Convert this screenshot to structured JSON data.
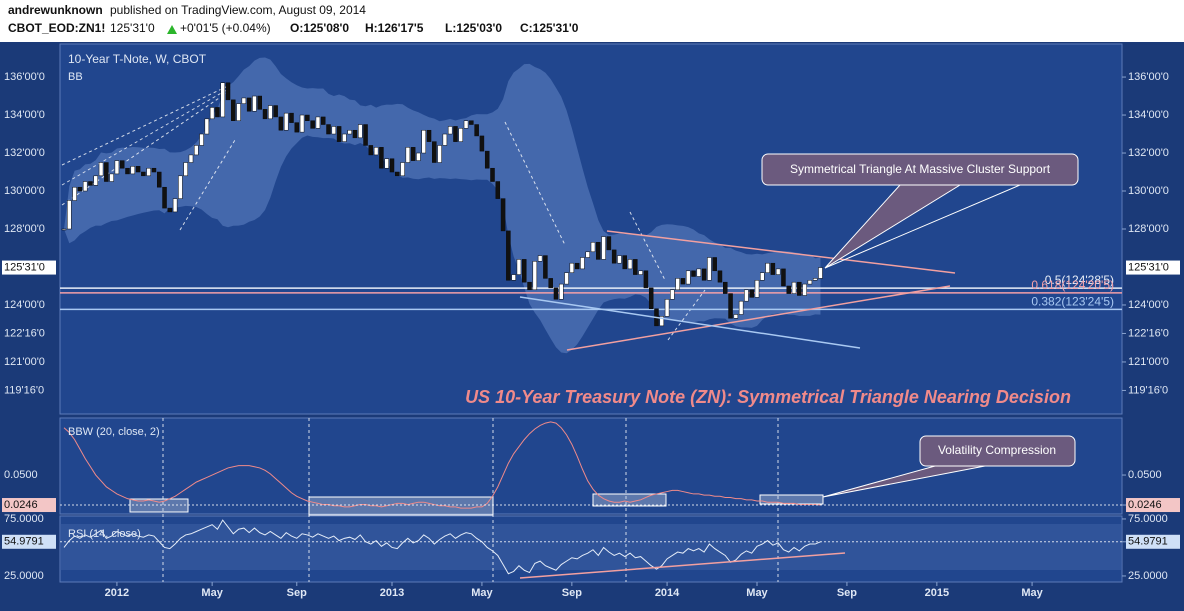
{
  "header": {
    "author": "andrewunknown",
    "published": "published on TradingView.com, August 09, 2014",
    "symbol": "CBOT_EOD:ZN1!",
    "last": "125'31'0",
    "change": "+0'01'5 (+0.04%)",
    "open": "O:125'08'0",
    "high": "H:126'17'5",
    "low": "L:125'03'0",
    "close": "C:125'31'0"
  },
  "chart_data": [
    {
      "type": "candlestick",
      "title": "10-Year T-Note, W, CBOT",
      "indicator": "BB",
      "annotation": "US 10-Year Treasury Note (ZN): Symmetrical Triangle Nearing Decision",
      "callout": "Symmetrical Triangle At Massive Cluster Support",
      "values": [
        128.0,
        129.5,
        130.2,
        130.0,
        130.5,
        130.3,
        130.8,
        131.5,
        130.5,
        130.9,
        131.6,
        131.2,
        130.9,
        131.3,
        131.0,
        130.8,
        131.2,
        131.0,
        130.2,
        129.1,
        128.9,
        129.6,
        130.8,
        131.5,
        131.9,
        132.4,
        133.0,
        133.8,
        134.4,
        133.9,
        135.7,
        134.8,
        133.7,
        134.6,
        134.9,
        134.2,
        135.0,
        134.3,
        133.8,
        134.5,
        133.9,
        133.2,
        134.1,
        133.6,
        133.1,
        134.0,
        133.7,
        133.3,
        133.9,
        133.5,
        133.0,
        133.4,
        132.6,
        133.0,
        133.2,
        132.8,
        133.5,
        132.4,
        131.9,
        132.3,
        131.2,
        131.7,
        131.0,
        130.8,
        131.5,
        132.3,
        131.6,
        132.0,
        133.2,
        132.6,
        131.5,
        132.4,
        133.0,
        133.4,
        132.6,
        133.3,
        133.7,
        133.5,
        132.9,
        132.1,
        131.2,
        130.5,
        129.6,
        127.9,
        125.3,
        125.6,
        126.4,
        125.2,
        124.8,
        126.3,
        126.6,
        125.4,
        124.9,
        124.3,
        125.1,
        125.7,
        126.2,
        125.9,
        126.5,
        126.8,
        127.3,
        126.4,
        127.6,
        126.9,
        126.2,
        126.6,
        125.9,
        126.4,
        125.6,
        125.8,
        124.9,
        123.8,
        122.9,
        123.4,
        124.3,
        124.8,
        125.4,
        125.1,
        125.8,
        125.5,
        125.9,
        125.3,
        126.5,
        125.8,
        125.2,
        124.6,
        123.3,
        123.5,
        124.2,
        124.8,
        124.4,
        125.3,
        125.7,
        126.2,
        125.6,
        125.9,
        125.0,
        124.6,
        125.2,
        124.5,
        125.1,
        125.3,
        125.4,
        125.97
      ],
      "colors": {
        "up": "#ffffff",
        "down": "#111111",
        "band": "#6f93d0"
      },
      "ylim": [
        118.26,
        137.74
      ],
      "yticks": [
        {
          "value": 136,
          "label": "136'00'0"
        },
        {
          "value": 134,
          "label": "134'00'0"
        },
        {
          "value": 132,
          "label": "132'00'0"
        },
        {
          "value": 130,
          "label": "130'00'0"
        },
        {
          "value": 128,
          "label": "128'00'0"
        },
        {
          "value": 124,
          "label": "124'00'0"
        },
        {
          "value": 122.5,
          "label": "122'16'0"
        },
        {
          "value": 121,
          "label": "121'00'0"
        },
        {
          "value": 119.5,
          "label": "119'16'0"
        }
      ],
      "last_value": {
        "value": 125.97,
        "label": "125'31'0"
      },
      "fib_levels": [
        {
          "value": 124.89,
          "label": "0.5(124'28'5)",
          "color": "#e8eef8"
        },
        {
          "value": 124.64,
          "label": "0.618(124'20'5)",
          "color": "#f4a0a8"
        },
        {
          "value": 123.77,
          "label": "0.382(123'24'5)",
          "color": "#a9c9f2"
        }
      ]
    },
    {
      "type": "line",
      "title": "BBW (20, close, 2)",
      "callout": "Volatility Compression",
      "color": "#f08a8a",
      "values": [
        0.09,
        0.086,
        0.08,
        0.072,
        0.064,
        0.057,
        0.05,
        0.045,
        0.04,
        0.037,
        0.034,
        0.032,
        0.03,
        0.029,
        0.028,
        0.028,
        0.029,
        0.028,
        0.027,
        0.028,
        0.03,
        0.032,
        0.035,
        0.038,
        0.041,
        0.044,
        0.046,
        0.048,
        0.05,
        0.052,
        0.054,
        0.056,
        0.057,
        0.058,
        0.058,
        0.058,
        0.057,
        0.056,
        0.054,
        0.051,
        0.047,
        0.043,
        0.039,
        0.035,
        0.032,
        0.03,
        0.028,
        0.027,
        0.026,
        0.025,
        0.025,
        0.024,
        0.024,
        0.023,
        0.023,
        0.024,
        0.025,
        0.025,
        0.024,
        0.024,
        0.023,
        0.024,
        0.025,
        0.026,
        0.026,
        0.025,
        0.026,
        0.027,
        0.027,
        0.026,
        0.025,
        0.024,
        0.024,
        0.023,
        0.023,
        0.022,
        0.022,
        0.022,
        0.023,
        0.023,
        0.026,
        0.032,
        0.04,
        0.05,
        0.06,
        0.068,
        0.074,
        0.08,
        0.085,
        0.089,
        0.092,
        0.094,
        0.095,
        0.094,
        0.09,
        0.084,
        0.076,
        0.066,
        0.055,
        0.045,
        0.038,
        0.033,
        0.03,
        0.028,
        0.027,
        0.027,
        0.028,
        0.027,
        0.028,
        0.029,
        0.031,
        0.033,
        0.034,
        0.035,
        0.036,
        0.037,
        0.037,
        0.036,
        0.035,
        0.034,
        0.034,
        0.033,
        0.033,
        0.032,
        0.032,
        0.031,
        0.031,
        0.03,
        0.03,
        0.029,
        0.029,
        0.028,
        0.028,
        0.027,
        0.027,
        0.027,
        0.026,
        0.026,
        0.026,
        0.025,
        0.025,
        0.025,
        0.025,
        0.0246
      ],
      "ylim": [
        0.017,
        0.0983
      ],
      "yticks": [
        {
          "value": 0.05,
          "label": "0.0500"
        },
        0.0246
      ]
    },
    {
      "type": "line",
      "title": "RSI (14, close)",
      "color": "#e4ecf8",
      "values": [
        50,
        56,
        60,
        58,
        61,
        59,
        62,
        65,
        58,
        60,
        64,
        62,
        60,
        62,
        60,
        59,
        61,
        60,
        55,
        50,
        49,
        53,
        58,
        61,
        62,
        64,
        66,
        68,
        70,
        66,
        74,
        68,
        62,
        66,
        67,
        63,
        67,
        63,
        61,
        64,
        61,
        58,
        63,
        60,
        58,
        62,
        61,
        59,
        62,
        60,
        58,
        60,
        56,
        58,
        59,
        57,
        61,
        55,
        53,
        56,
        51,
        54,
        50,
        49,
        54,
        58,
        54,
        56,
        61,
        58,
        53,
        57,
        60,
        62,
        58,
        61,
        63,
        62,
        58,
        55,
        50,
        47,
        43,
        35,
        27,
        29,
        34,
        30,
        28,
        36,
        38,
        34,
        32,
        30,
        35,
        38,
        41,
        40,
        43,
        45,
        48,
        43,
        50,
        46,
        43,
        45,
        42,
        45,
        41,
        42,
        38,
        34,
        31,
        34,
        40,
        43,
        46,
        45,
        49,
        47,
        49,
        46,
        53,
        49,
        46,
        43,
        37,
        39,
        44,
        47,
        45,
        51,
        53,
        56,
        52,
        54,
        48,
        46,
        50,
        47,
        51,
        53,
        53,
        54.9791
      ],
      "ylim": [
        19.7,
        77.6
      ],
      "yticks": [
        {
          "value": 75,
          "label": "75.0000"
        },
        54.9791,
        {
          "value": 25,
          "label": "25.0000"
        }
      ],
      "xlim": [
        -0.76,
        200
      ],
      "xticks": [
        {
          "value": 10,
          "label": "2012"
        },
        {
          "value": 28,
          "label": "May"
        },
        {
          "value": 44,
          "label": "Sep"
        },
        {
          "value": 62,
          "label": "2013"
        },
        {
          "value": 79,
          "label": "May"
        },
        {
          "value": 96,
          "label": "Sep"
        },
        {
          "value": 114,
          "label": "2014"
        },
        {
          "value": 131,
          "label": "May"
        },
        {
          "value": 148,
          "label": "Sep"
        },
        {
          "value": 165,
          "label": "2015"
        },
        {
          "value": 183,
          "label": "May"
        }
      ]
    }
  ]
}
